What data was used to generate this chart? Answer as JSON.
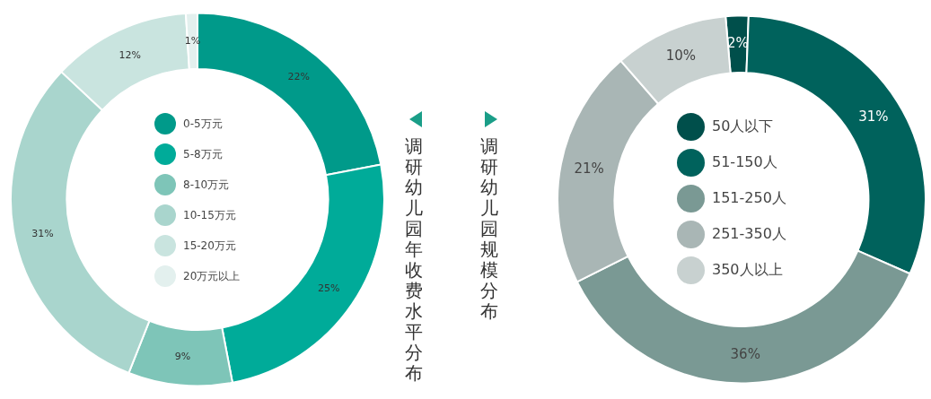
{
  "chart_data": [
    {
      "type": "donut",
      "title": "调研幼儿园年收费水平分布",
      "categories": [
        "0-5万元",
        "5-8万元",
        "8-10万元",
        "10-15万元",
        "15-20万元",
        "20万元以上"
      ],
      "values": [
        22,
        25,
        9,
        31,
        12,
        1
      ],
      "value_labels": [
        "22%",
        "25%",
        "9%",
        "31%",
        "12%",
        "1%"
      ],
      "colors": [
        "#009a8a",
        "#00ab99",
        "#7ec5b8",
        "#a9d5cd",
        "#c9e4df",
        "#e3f0ee"
      ],
      "legend": "center"
    },
    {
      "type": "donut",
      "title": "调研幼儿园规模分布",
      "categories": [
        "50人以下",
        "51-150人",
        "151-250人",
        "251-350人",
        "350人以上"
      ],
      "values": [
        2,
        31,
        36,
        21,
        10
      ],
      "value_labels": [
        "2%",
        "31%",
        "36%",
        "21%",
        "10%"
      ],
      "colors": [
        "#004f4b",
        "#00625c",
        "#7a9994",
        "#a9b6b5",
        "#c8d1d0"
      ],
      "legend": "center"
    }
  ]
}
